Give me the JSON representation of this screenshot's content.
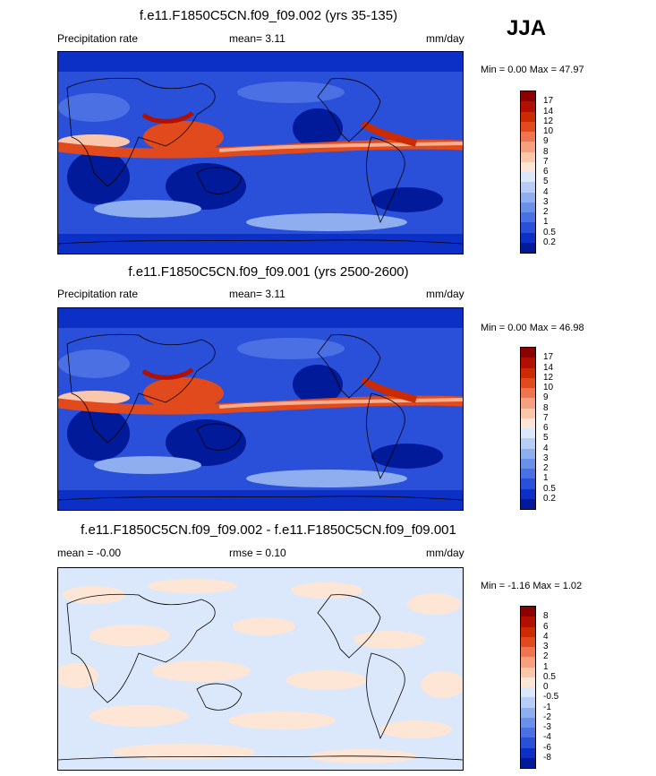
{
  "season": "JJA",
  "panels": [
    {
      "title": "f.e11.F1850C5CN.f09_f09.002 (yrs 35-135)",
      "left_label": "Precipitation rate",
      "center_label": "mean=   3.11",
      "units": "mm/day",
      "minmax": "Min =   0.00 Max =  47.97",
      "colorbar_labels": [
        "17",
        "14",
        "12",
        "10",
        "9",
        "8",
        "7",
        "6",
        "5",
        "4",
        "3",
        "2",
        "1",
        "0.5",
        "0.2"
      ],
      "colors": [
        "#8b0000",
        "#b11000",
        "#cc2a00",
        "#e14a1c",
        "#ef7550",
        "#f7a07e",
        "#fbc7ac",
        "#fde6d6",
        "#dbe8fb",
        "#b7cdf6",
        "#8eaef0",
        "#6b90ea",
        "#4a70e4",
        "#2a4fd8",
        "#0c2fc6",
        "#001a99"
      ]
    },
    {
      "title": "f.e11.F1850C5CN.f09_f09.001 (yrs 2500-2600)",
      "left_label": "Precipitation rate",
      "center_label": "mean=   3.11",
      "units": "mm/day",
      "minmax": "Min =   0.00 Max =  46.98",
      "colorbar_labels": [
        "17",
        "14",
        "12",
        "10",
        "9",
        "8",
        "7",
        "6",
        "5",
        "4",
        "3",
        "2",
        "1",
        "0.5",
        "0.2"
      ],
      "colors": [
        "#8b0000",
        "#b11000",
        "#cc2a00",
        "#e14a1c",
        "#ef7550",
        "#f7a07e",
        "#fbc7ac",
        "#fde6d6",
        "#dbe8fb",
        "#b7cdf6",
        "#8eaef0",
        "#6b90ea",
        "#4a70e4",
        "#2a4fd8",
        "#0c2fc6",
        "#001a99"
      ]
    },
    {
      "title": "f.e11.F1850C5CN.f09_f09.002 - f.e11.F1850C5CN.f09_f09.001",
      "left_label": "mean =  -0.00",
      "center_label": "rmse =   0.10",
      "units": "mm/day",
      "minmax": "Min =  -1.16 Max =   1.02",
      "colorbar_labels": [
        "8",
        "6",
        "4",
        "3",
        "2",
        "1",
        "0.5",
        "0",
        "-0.5",
        "-1",
        "-2",
        "-3",
        "-4",
        "-6",
        "-8"
      ],
      "colors": [
        "#8b0000",
        "#b11000",
        "#cc2a00",
        "#e14a1c",
        "#ef7550",
        "#f7a07e",
        "#fbc7ac",
        "#fde6d6",
        "#dbe8fb",
        "#b7cdf6",
        "#8eaef0",
        "#6b90ea",
        "#4a70e4",
        "#2a4fd8",
        "#0c2fc6",
        "#001a99"
      ]
    }
  ]
}
